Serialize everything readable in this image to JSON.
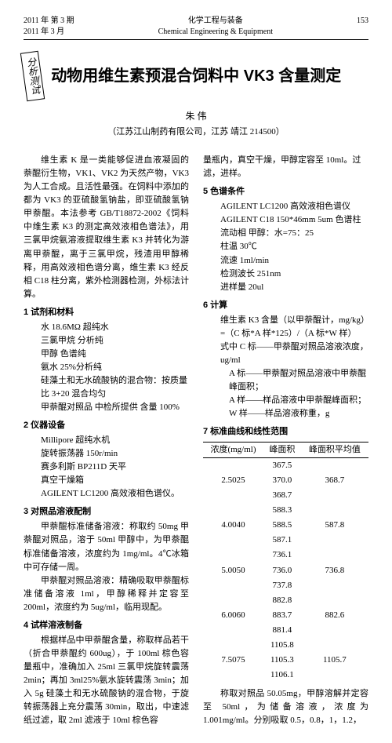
{
  "header": {
    "issue_line1": "2011 年 第 3 期",
    "issue_line2": "2011 年 3 月",
    "journal_cn": "化学工程与装备",
    "journal_en": "Chemical Engineering & Equipment",
    "page": "153"
  },
  "title_badge": "分析测试",
  "title": "动物用维生素预混合饲料中 VK3 含量测定",
  "author": "朱 伟",
  "affiliation": "（江苏江山制药有限公司，江苏 靖江 214500）",
  "intro": "维生素 K 是一类能够促进血液凝固的萘醌衍生物，VK1、VK2 为天然产物，VK3 为人工合成。且活性最强。在饲料中添加的都为 VK3 的亚硫酸氢钠盐，即亚硫酸氢钠甲萘醌。本法参考 GB/T18872-2002《饲料中维生素 K3 的测定高效液相色谱法》，用三氯甲烷氨溶液提取维生素 K3 并转化为游离甲萘醌，离于三氯甲烷，残渣用甲醇稀释，用高效液相色谱分离，维生素 K3 经反相 C18 柱分离，紫外检测器检测，外标法计算。",
  "s1": "1 试剂和材料",
  "r1": "水   18.6MΩ   超纯水",
  "r2": "三氯甲烷   分析纯",
  "r3": "甲醇   色谱纯",
  "r4": "氨水   25%分析纯",
  "r5": "硅藻土和无水硫酸钠的混合物：按质量比 3+20 混合均匀",
  "r6": "甲萘醌对照品   中检所提供   含量   100%",
  "s2": "2 仪器设备",
  "e1": "Millipore 超纯水机",
  "e2": "旋转振荡器   150r/min",
  "e3": "赛多利斯   BP211D 天平",
  "e4": "真空干燥箱",
  "e5": "AGILENT   LC1200   高效液相色谱仪。",
  "s3": "3 对照品溶液配制",
  "p3a": "甲萘醌标准储备溶液：称取约 50mg 甲萘醌对照品，溶于 50ml 甲醇中，为甲萘醌标准储备溶液，浓度约为 1mg/ml。4℃冰箱中可存储一周。",
  "p3b": "甲萘醌对照品溶液：精确吸取甲萘醌标准储备溶液 1ml，甲醇稀释并定容至 200ml，浓度约为 5ug/ml，临用现配。",
  "s4": "4 试样溶液制备",
  "p4": "根据样品中甲萘醌含量，称取样品若干（折合甲萘醌约 600ug），于 100ml 棕色容量瓶中，准确加入 25ml 三氯甲烷旋转震荡 2min；再加 3ml25%氨水旋转震荡 3min；加入 5g 硅藻土和无水硫酸钠的混合物，于旋转振荡器上充分震荡 30min，取出，中速滤纸过滤，取 2ml 滤液于 10ml 棕色容",
  "p4_cont": "量瓶内，真空干燥，甲醇定容至 10ml。过滤，进样。",
  "s5": "5 色谱条件",
  "c1": "AGILENT   LC1200   高效液相色谱仪",
  "c2": "AGILENT  C18   150*46mm   5um   色谱柱",
  "c3": "流动相   甲醇：水=75：25",
  "c4": "柱温      30℃",
  "c5": "流速   1ml/min",
  "c6": "检测波长   251nm",
  "c7": "进样量   20ul",
  "s6": "6 计算",
  "f1": "维生素 K3 含量（以甲萘醌计，mg/kg）=（C 标*A 样*125）/（A 标*W 样）",
  "f2": "式中  C 标——甲萘醌对照品溶液浓度，ug/ml",
  "f3": "A 标——甲萘醌对照品溶液中甲萘醌峰面积；",
  "f4": "A 样——样品溶液中甲萘醌峰面积；",
  "f5": "W 样——样品溶液称重，g",
  "s7": "7 标准曲线和线性范围",
  "table": {
    "headers": [
      "浓度(mg/ml)",
      "峰面积",
      "峰面积平均值"
    ],
    "rows": [
      [
        "",
        "367.5",
        ""
      ],
      [
        "2.5025",
        "370.0",
        "368.7"
      ],
      [
        "",
        "368.7",
        ""
      ],
      [
        "",
        "588.3",
        ""
      ],
      [
        "4.0040",
        "588.5",
        "587.8"
      ],
      [
        "",
        "587.1",
        ""
      ],
      [
        "",
        "736.1",
        ""
      ],
      [
        "5.0050",
        "736.0",
        "736.8"
      ],
      [
        "",
        "737.8",
        ""
      ],
      [
        "",
        "882.8",
        ""
      ],
      [
        "6.0060",
        "883.7",
        "882.6"
      ],
      [
        "",
        "881.4",
        ""
      ],
      [
        "",
        "1105.8",
        ""
      ],
      [
        "7.5075",
        "1105.3",
        "1105.7"
      ],
      [
        "",
        "1106.1",
        ""
      ]
    ]
  },
  "p7": "称取对照品 50.05mg，甲醇溶解并定容至 50ml，为储备溶液，浓度为 1.001mg/ml。分别吸取 0.5，0.8，1，1.2，"
}
